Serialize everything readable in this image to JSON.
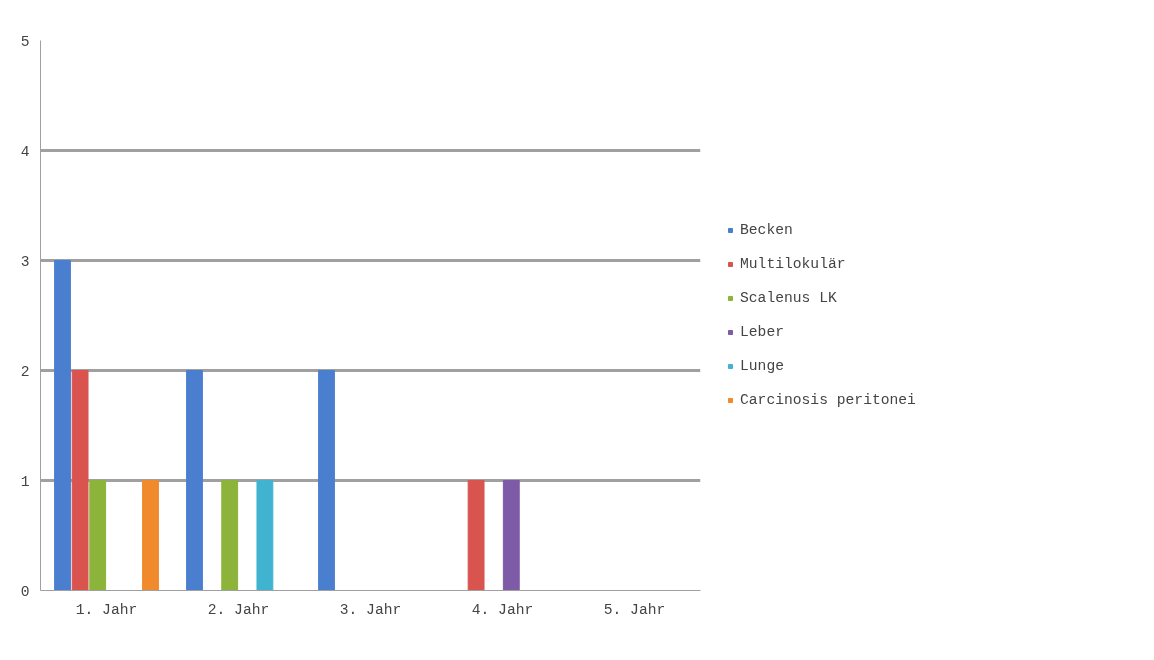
{
  "chart_data": {
    "type": "bar",
    "categories": [
      "1. Jahr",
      "2. Jahr",
      "3. Jahr",
      "4. Jahr",
      "5. Jahr"
    ],
    "series": [
      {
        "name": "Becken",
        "color": "#4a7fd0",
        "values": [
          3,
          2,
          2,
          0,
          0
        ]
      },
      {
        "name": "Multilokulär",
        "color": "#d9534f",
        "values": [
          2,
          0,
          0,
          1,
          0
        ]
      },
      {
        "name": "Scalenus LK",
        "color": "#8db43a",
        "values": [
          1,
          1,
          0,
          0,
          0
        ]
      },
      {
        "name": "Leber",
        "color": "#7e5ba6",
        "values": [
          0,
          0,
          0,
          1,
          0
        ]
      },
      {
        "name": "Lunge",
        "color": "#3fb3d0",
        "values": [
          0,
          1,
          0,
          0,
          0
        ]
      },
      {
        "name": "Carcinosis peritonei",
        "color": "#f08a2c",
        "values": [
          1,
          0,
          0,
          0,
          0
        ]
      }
    ],
    "ylim": [
      0,
      5
    ],
    "yticks": [
      0,
      1,
      2,
      3,
      4,
      5
    ],
    "grid": "y",
    "legend": "right"
  }
}
